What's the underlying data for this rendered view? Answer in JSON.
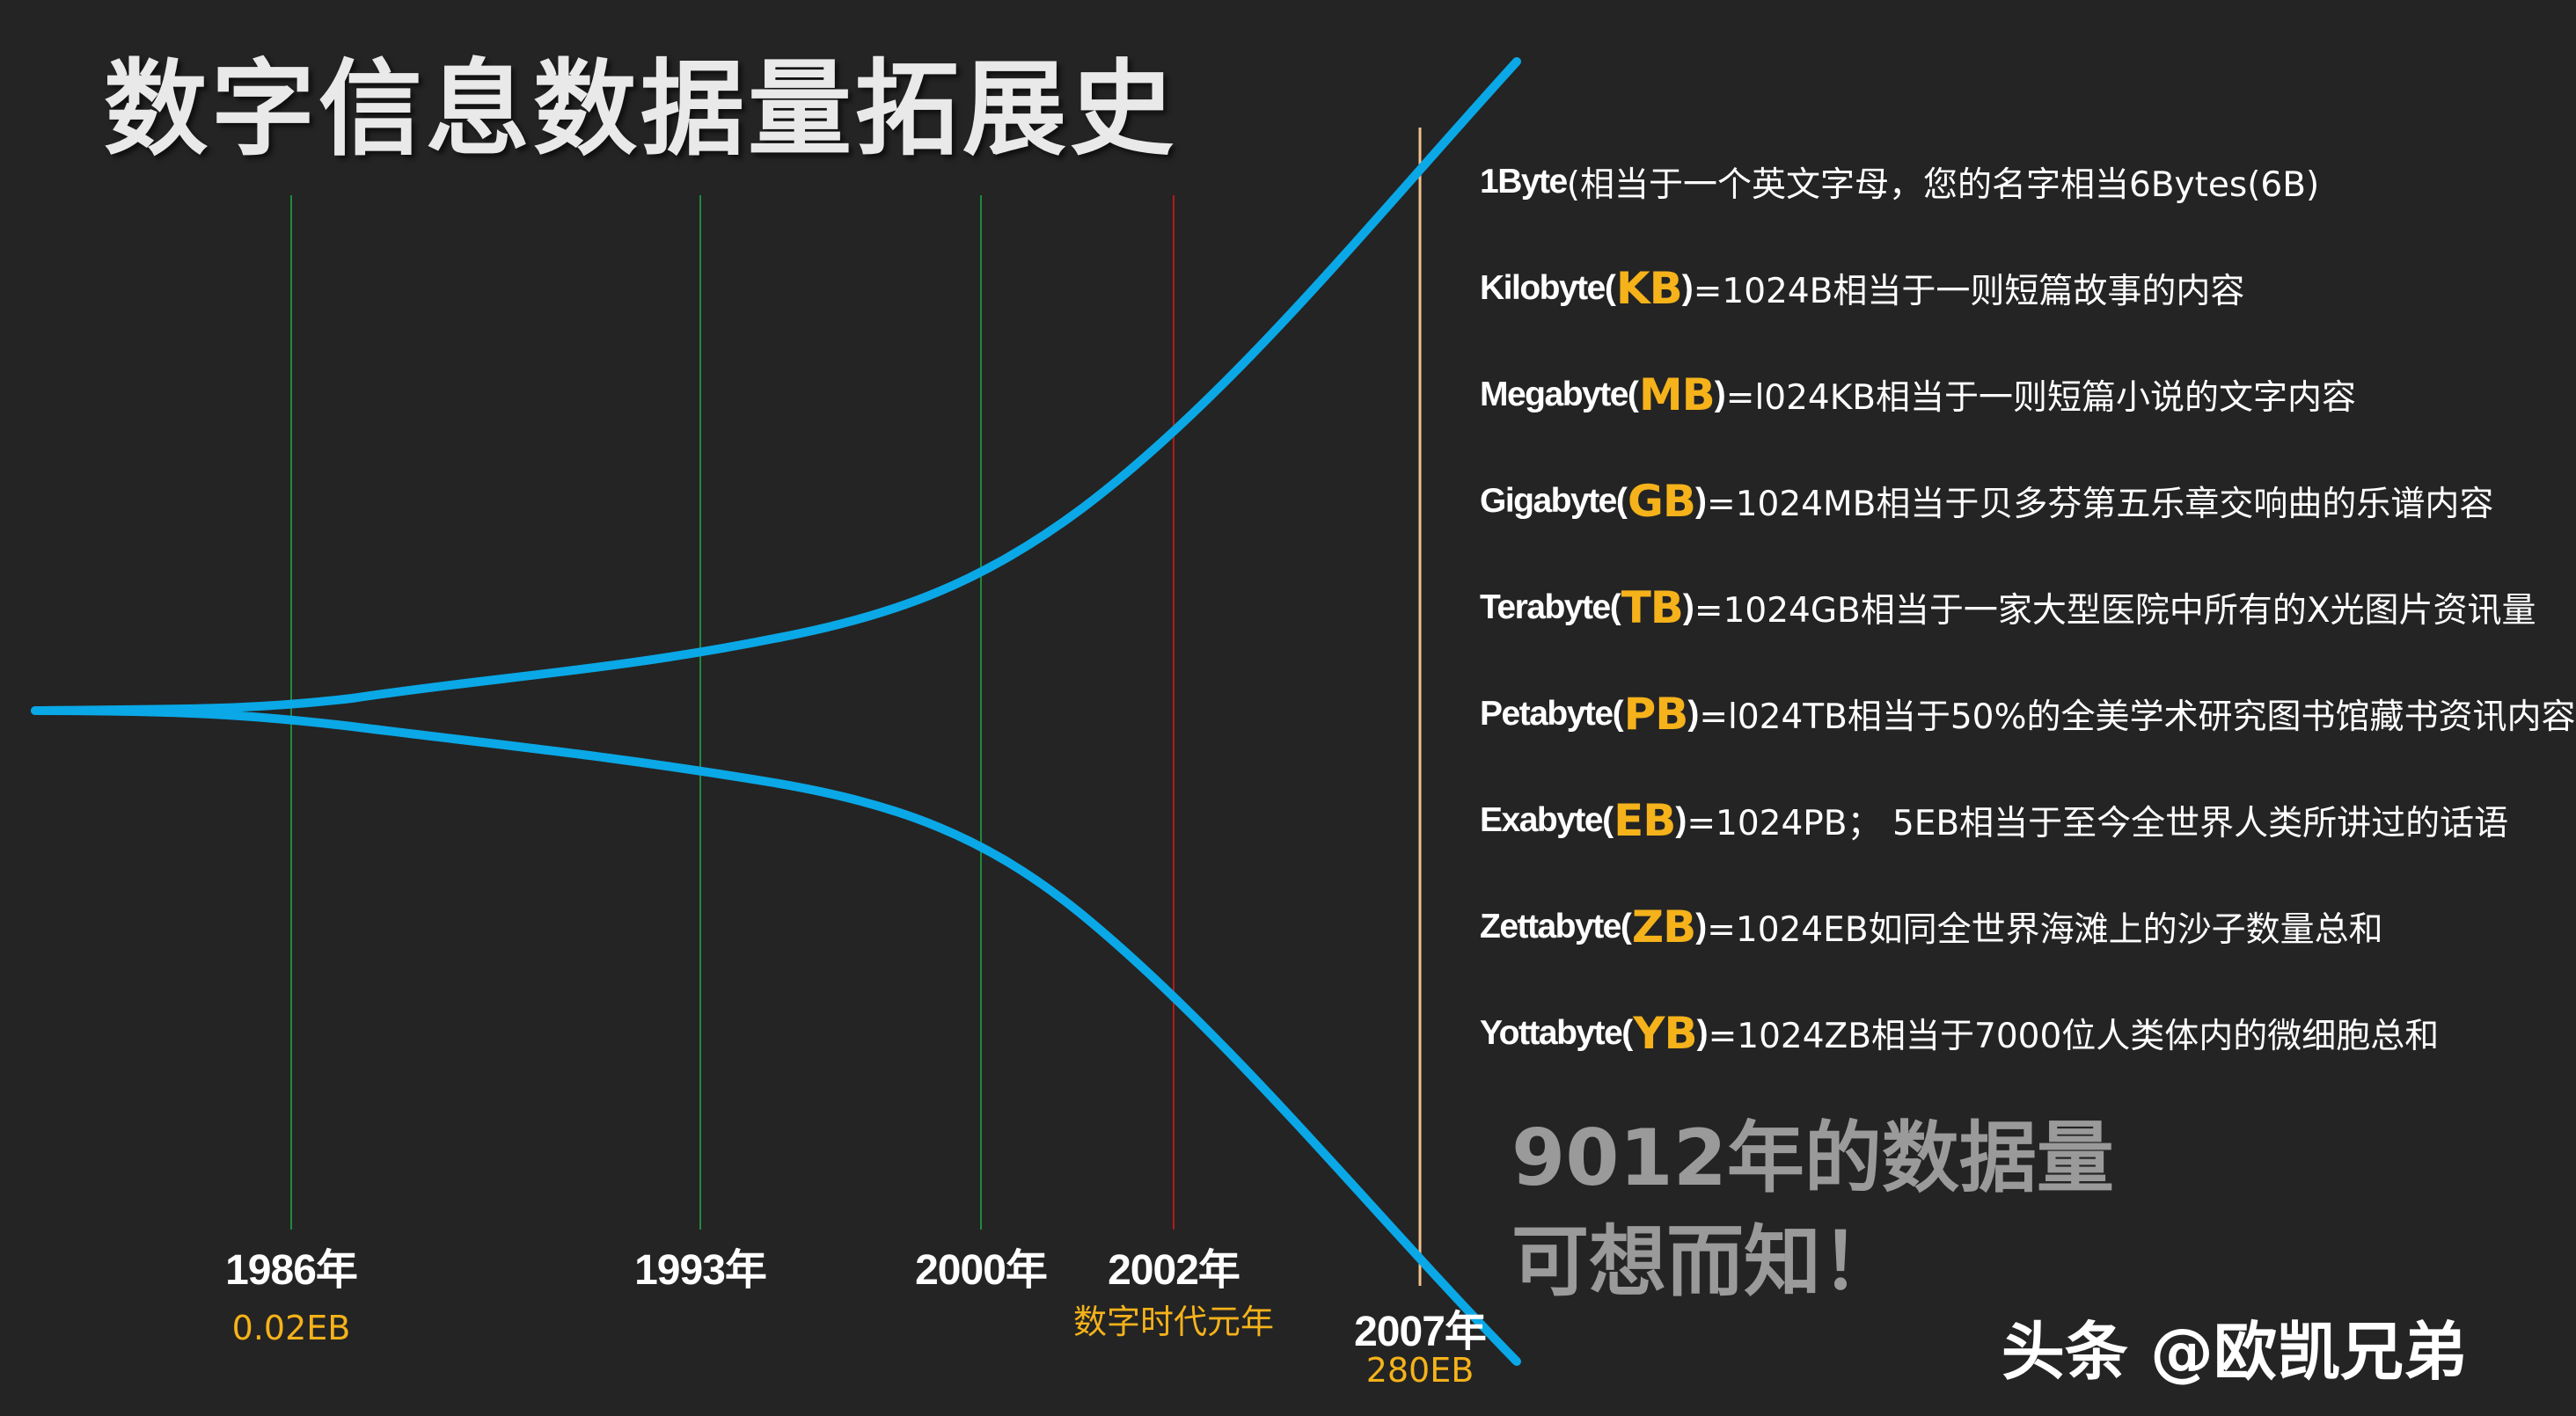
{
  "title": "数字信息数据量拓展史",
  "timeline": [
    {
      "year": "1986年",
      "sub": "0.02EB"
    },
    {
      "year": "1993年",
      "sub": ""
    },
    {
      "year": "2000年",
      "sub": ""
    },
    {
      "year": "2002年",
      "sub": "数字时代元年"
    },
    {
      "year": "2007年",
      "sub": "280EB"
    }
  ],
  "units": [
    {
      "name": "1Byte",
      "abbr": "",
      "desc": "(相当于一个英文字母，您的名字相当6Bytes(6B)"
    },
    {
      "name": "Kilobyte",
      "abbr": "KB",
      "desc": "=1024B相当于一则短篇故事的内容"
    },
    {
      "name": "Megabyte",
      "abbr": "MB",
      "desc": "=l024KB相当于一则短篇小说的文字内容"
    },
    {
      "name": "Gigabyte",
      "abbr": "GB",
      "desc": "=1024MB相当于贝多芬第五乐章交响曲的乐谱内容"
    },
    {
      "name": "Terabyte",
      "abbr": "TB",
      "desc": "=1024GB相当于一家大型医院中所有的X光图片资讯量"
    },
    {
      "name": "Petabyte",
      "abbr": "PB",
      "desc": "=l024TB相当于50%的全美学术研究图书馆藏书资讯内容"
    },
    {
      "name": "Exabyte ",
      "abbr": "EB",
      "desc": "=1024PB；  5EB相当于至今全世界人类所讲过的话语"
    },
    {
      "name": "Zettabyte",
      "abbr": "ZB",
      "desc": "=1024EB如同全世界海滩上的沙子数量总和"
    },
    {
      "name": "Yottabyte",
      "abbr": "YB",
      "desc": "=1024ZB相当于7000位人类体内的微细胞总和"
    }
  ],
  "future_line1": "9012年的数据量",
  "future_line2": "可想而知！",
  "watermark": "头条 @欧凯兄弟",
  "colors": {
    "background": "#242424",
    "curve": "#0aa8e6",
    "year_line": "#1f8a3c",
    "era_line": "#b31a1a",
    "end_line": "#f0c08a",
    "accent": "#f5b21a"
  }
}
